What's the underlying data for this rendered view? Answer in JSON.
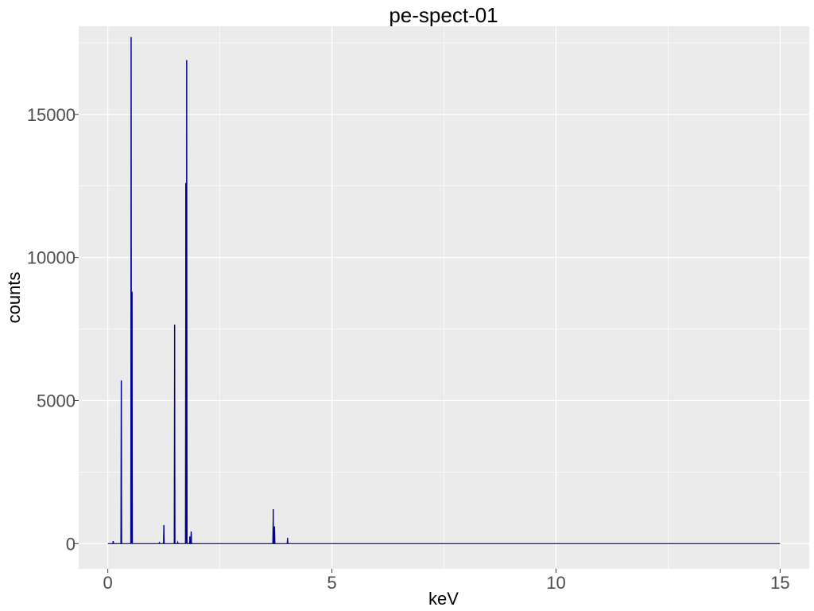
{
  "chart_data": {
    "type": "line",
    "title": "pe-spect-01",
    "xlabel": "keV",
    "ylabel": "counts",
    "xlim": [
      -0.65,
      15.65
    ],
    "ylim": [
      -880,
      18080
    ],
    "x_ticks": [
      0,
      5,
      10,
      15
    ],
    "y_ticks": [
      0,
      5000,
      10000,
      15000
    ],
    "x_tick_labels": [
      "0",
      "5",
      "10",
      "15"
    ],
    "y_tick_labels": [
      "0",
      "5000",
      "10000",
      "15000"
    ],
    "grid": true,
    "legend": "none",
    "colors": {
      "panel": "#ebebeb",
      "grid_major": "#ffffff",
      "series": "#00008b",
      "tick_label": "#4d4d4d"
    },
    "series": [
      {
        "x_start": 0,
        "x_end": 15,
        "baseline": 0,
        "peaks": [
          {
            "x": 0.12,
            "y": 90
          },
          {
            "x": 0.3,
            "y": 5700
          },
          {
            "x": 0.52,
            "y": 17700
          },
          {
            "x": 0.54,
            "y": 8800
          },
          {
            "x": 1.15,
            "y": 40
          },
          {
            "x": 1.25,
            "y": 650
          },
          {
            "x": 1.49,
            "y": 7650
          },
          {
            "x": 1.56,
            "y": 60
          },
          {
            "x": 1.74,
            "y": 12600
          },
          {
            "x": 1.76,
            "y": 16900
          },
          {
            "x": 1.83,
            "y": 250
          },
          {
            "x": 1.86,
            "y": 420
          },
          {
            "x": 3.69,
            "y": 1200
          },
          {
            "x": 3.72,
            "y": 600
          },
          {
            "x": 4.01,
            "y": 200
          }
        ]
      }
    ]
  }
}
